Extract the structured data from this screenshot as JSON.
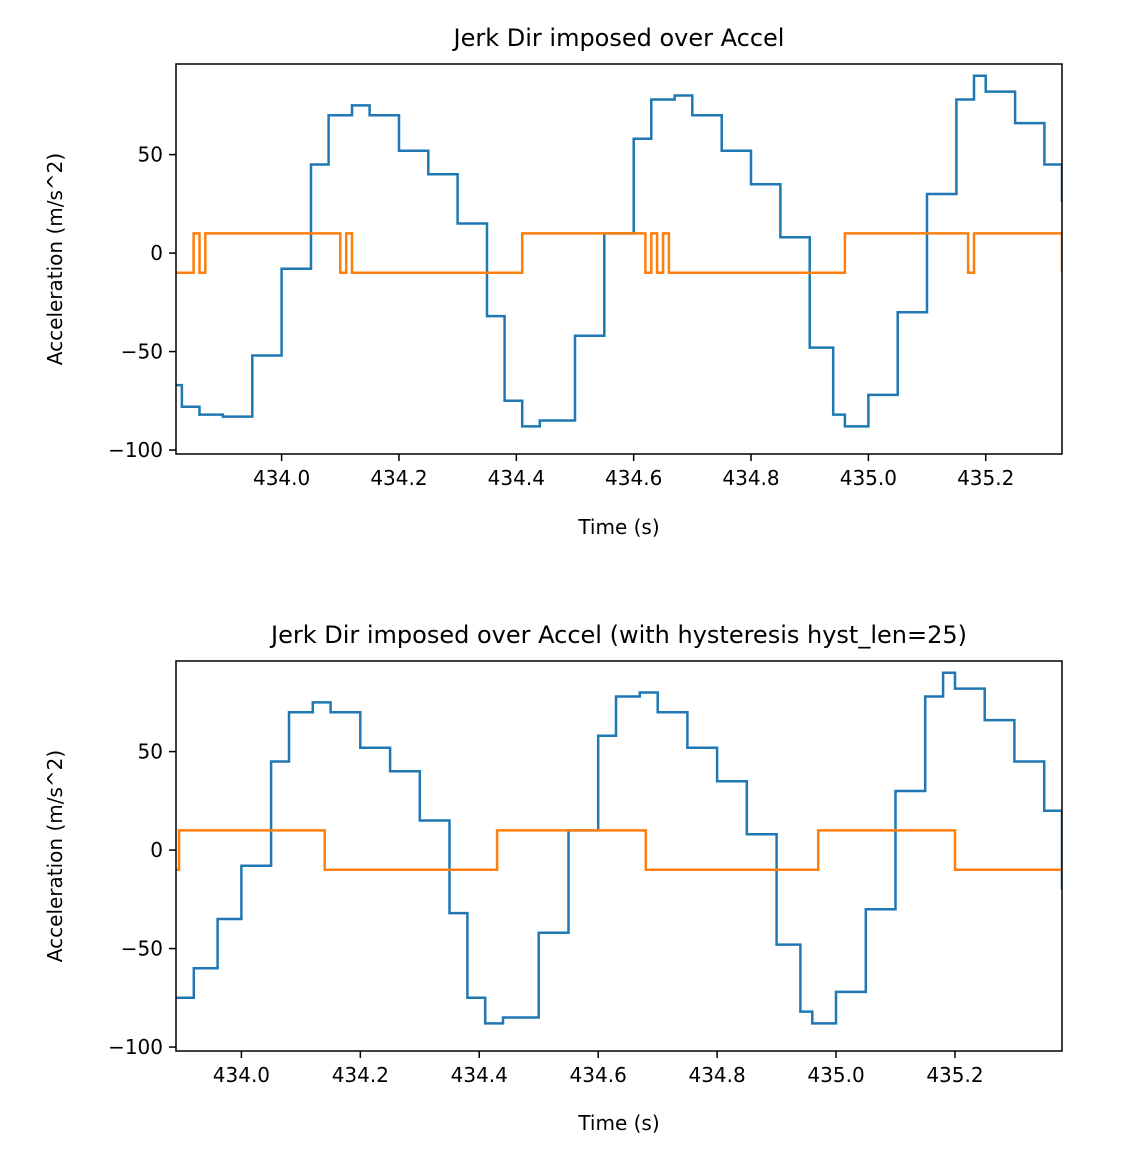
{
  "colors": {
    "accel": "#1f77b4",
    "jerk": "#ff7f0e",
    "axis": "#000000",
    "background": "#ffffff"
  },
  "chart_data": [
    {
      "type": "line",
      "title": "Jerk Dir imposed over Accel",
      "xlabel": "Time (s)",
      "ylabel": "Acceleration (m/s^2)",
      "xlim": [
        433.82,
        435.33
      ],
      "ylim": [
        -102,
        96
      ],
      "xticks": [
        434.0,
        434.2,
        434.4,
        434.6,
        434.8,
        435.0,
        435.2
      ],
      "xtick_labels": [
        "434.0",
        "434.2",
        "434.4",
        "434.6",
        "434.8",
        "435.0",
        "435.2"
      ],
      "yticks": [
        -100,
        -50,
        0,
        50
      ],
      "ytick_labels": [
        "−100",
        "−50",
        "0",
        "50"
      ],
      "grid": false,
      "series": [
        {
          "style": "steps",
          "x": [
            433.82,
            433.83,
            433.86,
            433.9,
            433.95,
            434.0,
            434.05,
            434.08,
            434.12,
            434.15,
            434.2,
            434.25,
            434.3,
            434.35,
            434.38,
            434.41,
            434.44,
            434.5,
            434.55,
            434.6,
            434.63,
            434.67,
            434.7,
            434.75,
            434.8,
            434.85,
            434.9,
            434.94,
            434.96,
            435.0,
            435.05,
            435.1,
            435.15,
            435.18,
            435.2,
            435.25,
            435.3,
            435.33
          ],
          "y": [
            -67,
            -78,
            -82,
            -83,
            -52,
            -8,
            45,
            70,
            75,
            70,
            52,
            40,
            15,
            -32,
            -75,
            -88,
            -85,
            -42,
            10,
            58,
            78,
            80,
            70,
            52,
            35,
            8,
            -48,
            -82,
            -88,
            -72,
            -30,
            30,
            78,
            90,
            82,
            66,
            45,
            26
          ]
        },
        {
          "style": "steps",
          "x": [
            433.82,
            433.85,
            433.86,
            433.87,
            434.1,
            434.11,
            434.12,
            434.41,
            434.62,
            434.63,
            434.64,
            434.65,
            434.66,
            434.96,
            435.17,
            435.18,
            435.33
          ],
          "y": [
            -10,
            10,
            -10,
            10,
            -10,
            10,
            -10,
            10,
            -10,
            10,
            -10,
            10,
            -10,
            10,
            -10,
            10,
            -10
          ]
        }
      ]
    },
    {
      "type": "line",
      "title": "Jerk Dir imposed over Accel (with hysteresis hyst_len=25)",
      "xlabel": "Time (s)",
      "ylabel": "Acceleration (m/s^2)",
      "xlim": [
        433.89,
        435.38
      ],
      "ylim": [
        -102,
        96
      ],
      "xticks": [
        434.0,
        434.2,
        434.4,
        434.6,
        434.8,
        435.0,
        435.2
      ],
      "xtick_labels": [
        "434.0",
        "434.2",
        "434.4",
        "434.6",
        "434.8",
        "435.0",
        "435.2"
      ],
      "yticks": [
        -100,
        -50,
        0,
        50
      ],
      "ytick_labels": [
        "−100",
        "−50",
        "0",
        "50"
      ],
      "grid": false,
      "series": [
        {
          "style": "steps",
          "x": [
            433.89,
            433.92,
            433.96,
            434.0,
            434.05,
            434.08,
            434.12,
            434.15,
            434.2,
            434.25,
            434.3,
            434.35,
            434.38,
            434.41,
            434.44,
            434.5,
            434.55,
            434.6,
            434.63,
            434.67,
            434.7,
            434.75,
            434.8,
            434.85,
            434.9,
            434.94,
            434.96,
            435.0,
            435.05,
            435.1,
            435.15,
            435.18,
            435.2,
            435.25,
            435.3,
            435.35,
            435.38
          ],
          "y": [
            -75,
            -60,
            -35,
            -8,
            45,
            70,
            75,
            70,
            52,
            40,
            15,
            -32,
            -75,
            -88,
            -85,
            -42,
            10,
            58,
            78,
            80,
            70,
            52,
            35,
            8,
            -48,
            -82,
            -88,
            -72,
            -30,
            30,
            78,
            90,
            82,
            66,
            45,
            20,
            -20
          ]
        },
        {
          "style": "steps",
          "x": [
            433.89,
            433.895,
            434.14,
            434.43,
            434.68,
            434.97,
            435.2,
            435.38
          ],
          "y": [
            -10,
            10,
            -10,
            10,
            -10,
            10,
            -10,
            -10
          ]
        }
      ]
    }
  ]
}
